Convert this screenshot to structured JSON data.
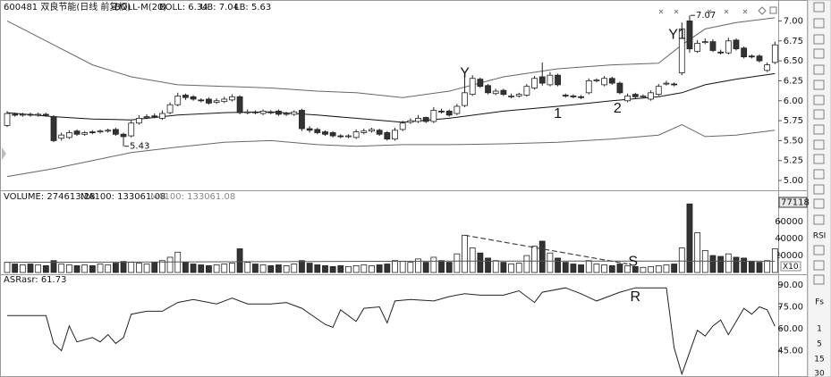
{
  "chart_data": [
    {
      "type": "candlestick",
      "title": "600481 双良节能(日线 前复权)",
      "indicator": "BOLL-M(20)",
      "legend": [
        "BOLL: 6.34",
        "UB: 7.04",
        "LB: 5.63"
      ],
      "open": [
        5.69,
        5.83,
        5.82,
        5.83,
        5.82,
        5.83,
        5.8,
        5.53,
        5.54,
        5.62,
        5.58,
        5.61,
        5.61,
        5.62,
        5.64,
        5.58,
        5.56,
        5.72,
        5.79,
        5.81,
        5.78,
        5.85,
        5.95,
        6.07,
        6.05,
        6.01,
        6.02,
        5.98,
        5.99,
        6.01,
        6.05,
        5.85,
        5.86,
        5.84,
        5.86,
        5.87,
        5.83,
        5.83,
        5.88,
        5.65,
        5.64,
        5.61,
        5.6,
        5.56,
        5.55,
        5.54,
        5.6,
        5.62,
        5.63,
        5.6,
        5.52,
        5.64,
        5.73,
        5.74,
        5.79,
        5.74,
        5.87,
        5.87,
        5.84,
        5.94,
        6.08,
        6.27,
        6.19,
        6.09,
        6.13,
        6.05,
        6.06,
        6.07,
        6.16,
        6.3,
        6.2,
        6.32,
        6.07,
        6.06,
        6.05,
        6.1,
        6.25,
        6.2,
        6.28,
        6.22,
        6.0,
        6.08,
        6.05,
        6.02,
        6.08,
        6.21,
        6.21,
        6.35,
        7.0,
        6.62,
        6.73,
        6.74,
        6.61,
        6.6,
        6.76,
        6.66,
        6.56,
        6.56,
        6.38,
        6.48
      ],
      "high": [
        5.87,
        5.85,
        5.85,
        5.85,
        5.85,
        5.85,
        5.82,
        5.6,
        5.63,
        5.64,
        5.62,
        5.63,
        5.64,
        5.65,
        5.66,
        5.6,
        5.75,
        5.82,
        5.83,
        5.84,
        5.88,
        5.98,
        6.1,
        6.09,
        6.07,
        6.03,
        6.04,
        6.03,
        6.05,
        6.08,
        6.07,
        5.89,
        5.88,
        5.89,
        5.88,
        5.89,
        5.86,
        5.88,
        5.9,
        5.68,
        5.66,
        5.63,
        5.62,
        5.58,
        5.58,
        5.64,
        5.65,
        5.66,
        5.65,
        5.62,
        5.66,
        5.75,
        5.78,
        5.82,
        5.8,
        5.92,
        5.9,
        5.89,
        5.96,
        6.3,
        6.32,
        6.29,
        6.21,
        6.15,
        6.15,
        6.09,
        6.1,
        6.21,
        6.31,
        6.48,
        6.36,
        6.34,
        6.09,
        6.08,
        6.07,
        6.28,
        6.28,
        6.31,
        6.3,
        6.24,
        6.09,
        6.1,
        6.08,
        6.13,
        6.21,
        6.25,
        6.23,
        6.98,
        7.07,
        6.76,
        6.78,
        6.77,
        6.64,
        6.79,
        6.78,
        6.68,
        6.58,
        6.58,
        6.48,
        6.74
      ],
      "low": [
        5.67,
        5.8,
        5.8,
        5.8,
        5.8,
        5.8,
        5.48,
        5.5,
        5.52,
        5.56,
        5.56,
        5.58,
        5.59,
        5.6,
        5.56,
        5.43,
        5.54,
        5.7,
        5.77,
        5.78,
        5.76,
        5.83,
        5.93,
        6.01,
        6.0,
        5.98,
        5.95,
        5.96,
        5.97,
        5.99,
        5.83,
        5.83,
        5.83,
        5.82,
        5.83,
        5.81,
        5.81,
        5.81,
        5.62,
        5.6,
        5.58,
        5.56,
        5.54,
        5.53,
        5.53,
        5.52,
        5.58,
        5.6,
        5.56,
        5.5,
        5.5,
        5.62,
        5.71,
        5.72,
        5.72,
        5.72,
        5.84,
        5.8,
        5.82,
        5.92,
        6.06,
        6.16,
        6.08,
        6.07,
        6.06,
        6.03,
        6.04,
        6.05,
        6.14,
        6.19,
        6.18,
        6.18,
        6.04,
        6.03,
        6.02,
        6.08,
        6.23,
        6.18,
        6.2,
        6.08,
        5.98,
        6.03,
        6.03,
        6.0,
        6.06,
        6.19,
        6.18,
        6.32,
        6.6,
        6.6,
        6.71,
        6.61,
        6.58,
        6.58,
        6.63,
        6.53,
        6.53,
        6.48,
        6.36,
        6.46
      ],
      "close": [
        5.84,
        5.82,
        5.83,
        5.82,
        5.83,
        5.82,
        5.5,
        5.57,
        5.6,
        5.58,
        5.6,
        5.6,
        5.62,
        5.63,
        5.58,
        5.55,
        5.72,
        5.78,
        5.8,
        5.8,
        5.84,
        5.95,
        6.06,
        6.04,
        6.02,
        6.0,
        5.97,
        6.0,
        6.02,
        6.05,
        5.85,
        5.86,
        5.85,
        5.87,
        5.85,
        5.83,
        5.84,
        5.86,
        5.65,
        5.63,
        5.6,
        5.58,
        5.56,
        5.55,
        5.56,
        5.61,
        5.62,
        5.64,
        5.58,
        5.52,
        5.63,
        5.72,
        5.75,
        5.78,
        5.74,
        5.88,
        5.86,
        5.82,
        5.93,
        6.1,
        6.28,
        6.18,
        6.1,
        6.12,
        6.08,
        6.06,
        6.08,
        6.18,
        6.28,
        6.22,
        6.32,
        6.2,
        6.06,
        6.05,
        6.04,
        6.25,
        6.26,
        6.28,
        6.22,
        6.1,
        6.06,
        6.05,
        6.06,
        6.1,
        6.18,
        6.22,
        6.2,
        6.9,
        6.65,
        6.72,
        6.74,
        6.63,
        6.6,
        6.75,
        6.65,
        6.55,
        6.55,
        6.5,
        6.45,
        6.7
      ],
      "up_color": "#ffffff",
      "down_color": "#333333",
      "series": [
        {
          "color": "#666666",
          "x": [
            0,
            6,
            11,
            16,
            22,
            28,
            34,
            40,
            45,
            51,
            57,
            64,
            71,
            78,
            84,
            87,
            90,
            94,
            99
          ],
          "values": [
            7.0,
            6.7,
            6.45,
            6.3,
            6.2,
            6.18,
            6.16,
            6.12,
            6.1,
            6.04,
            6.12,
            6.3,
            6.4,
            6.45,
            6.47,
            6.7,
            6.9,
            6.98,
            7.04
          ]
        },
        {
          "color": "#111111",
          "x": [
            0,
            6,
            11,
            16,
            22,
            28,
            34,
            40,
            45,
            51,
            57,
            64,
            71,
            78,
            84,
            87,
            90,
            94,
            99
          ],
          "values": [
            5.85,
            5.8,
            5.77,
            5.76,
            5.82,
            5.85,
            5.86,
            5.82,
            5.78,
            5.73,
            5.78,
            5.87,
            5.93,
            6.0,
            6.05,
            6.1,
            6.2,
            6.27,
            6.34
          ]
        },
        {
          "color": "#666666",
          "x": [
            0,
            6,
            11,
            16,
            22,
            28,
            34,
            40,
            45,
            51,
            57,
            64,
            71,
            78,
            84,
            87,
            90,
            94,
            99
          ],
          "values": [
            5.05,
            5.15,
            5.25,
            5.35,
            5.42,
            5.48,
            5.5,
            5.45,
            5.43,
            5.45,
            5.45,
            5.46,
            5.48,
            5.52,
            5.57,
            5.7,
            5.55,
            5.57,
            5.63
          ]
        }
      ],
      "ylim": [
        4.9,
        7.24
      ],
      "yticks": [
        {
          "value": 5,
          "label": "5.00"
        },
        {
          "value": 5.25,
          "label": "5.25"
        },
        {
          "value": 5.5,
          "label": "5.50"
        },
        {
          "value": 5.75,
          "label": "5.75"
        },
        {
          "value": 6,
          "label": "6.00"
        },
        {
          "value": 6.25,
          "label": "6.25"
        },
        {
          "value": 6.5,
          "label": "6.50"
        },
        {
          "value": 6.75,
          "label": "6.75"
        },
        {
          "value": 7,
          "label": "7.00"
        }
      ],
      "extreme_labels": [
        {
          "index": 88,
          "label": "7.07"
        },
        {
          "index": 15,
          "label": "5.43"
        }
      ],
      "annotations": [
        {
          "text": "Y",
          "x": 59,
          "y": 6.34
        },
        {
          "text": "Y1",
          "x": 86.4,
          "y": 6.82
        },
        {
          "text": "1",
          "x": 71,
          "y": 5.83
        },
        {
          "text": "2",
          "x": 78.7,
          "y": 5.9
        }
      ]
    },
    {
      "type": "bar",
      "title": "VOLUME: 274613.28",
      "legend": [
        "MA100: 133061.08",
        "MA100: 133061.08"
      ],
      "values": [
        12000,
        10000,
        9000,
        10000,
        9000,
        8000,
        14000,
        10000,
        9000,
        8000,
        9000,
        8000,
        10000,
        9000,
        11000,
        13000,
        12000,
        11000,
        10000,
        12000,
        14000,
        18000,
        24000,
        12000,
        10000,
        9000,
        8000,
        9000,
        10000,
        11000,
        28000,
        12000,
        10000,
        9000,
        8000,
        9000,
        8000,
        10000,
        14000,
        11000,
        9000,
        8000,
        7000,
        8000,
        7000,
        8000,
        9000,
        8000,
        9000,
        10000,
        14000,
        13000,
        12000,
        16000,
        12000,
        18000,
        14000,
        12000,
        22000,
        44000,
        29000,
        23000,
        17000,
        14000,
        12000,
        10000,
        11000,
        20000,
        31000,
        37000,
        23000,
        17000,
        12000,
        10000,
        9000,
        14000,
        10000,
        9000,
        8000,
        10000,
        8000,
        7000,
        6000,
        7000,
        8000,
        9000,
        10000,
        29000,
        81000,
        47000,
        26000,
        20000,
        19000,
        22000,
        18000,
        17000,
        13000,
        12000,
        14000,
        28000
      ],
      "series": [
        {
          "color": "#555555",
          "x": [
            0,
            20,
            40,
            60,
            80,
            99
          ],
          "values": [
            12000,
            12500,
            13000,
            13500,
            13500,
            13300
          ]
        }
      ],
      "ylim": [
        0,
        95000
      ],
      "yticks": [
        20000,
        40000,
        60000
      ],
      "cursor_label": 77118,
      "scale_label": "X10",
      "trend_line": {
        "x": [
          59,
          80
        ],
        "values": [
          44000,
          10000
        ]
      },
      "annotations": [
        {
          "text": "S",
          "x": 80.7,
          "y": 12600
        }
      ]
    },
    {
      "type": "line",
      "title": "ASR",
      "legend": [
        "asr: 61.73"
      ],
      "color": "#222222",
      "x": [
        0,
        5,
        6,
        7,
        8,
        9,
        11,
        12,
        13,
        14,
        15,
        16,
        18,
        20,
        22,
        24,
        27,
        29,
        31,
        34,
        36,
        38,
        41,
        42,
        43,
        45,
        46,
        48,
        49,
        50,
        52,
        55,
        57,
        59,
        61,
        64,
        66,
        68,
        69,
        72,
        74,
        76,
        79,
        81,
        83,
        85,
        86,
        87,
        89,
        90,
        91,
        92,
        93,
        95,
        96,
        97,
        98,
        99
      ],
      "values": [
        69,
        69,
        50,
        45,
        62,
        51,
        54,
        51,
        56,
        50,
        54,
        70,
        72,
        72,
        78,
        80,
        77,
        81,
        77,
        77,
        78,
        74,
        63,
        61,
        73,
        65,
        74,
        75,
        64,
        79,
        80,
        79,
        82,
        84,
        83,
        83,
        86,
        78,
        85,
        88,
        84,
        79,
        85,
        88,
        88,
        88,
        47,
        29,
        59,
        55,
        62,
        66,
        56,
        74,
        70,
        75,
        73,
        61.73
      ],
      "ylim": [
        27,
        96.7
      ],
      "yticks": [
        {
          "value": 45,
          "label": "45.00"
        },
        {
          "value": 60,
          "label": "60.00"
        },
        {
          "value": 75,
          "label": "75.00"
        },
        {
          "value": 90,
          "label": "90.00"
        }
      ],
      "annotations": [
        {
          "text": "R",
          "x": 81,
          "y": 81.4
        }
      ]
    }
  ],
  "toolbar": [
    "RSI",
    "Fs",
    "1",
    "5",
    "15",
    "30"
  ]
}
